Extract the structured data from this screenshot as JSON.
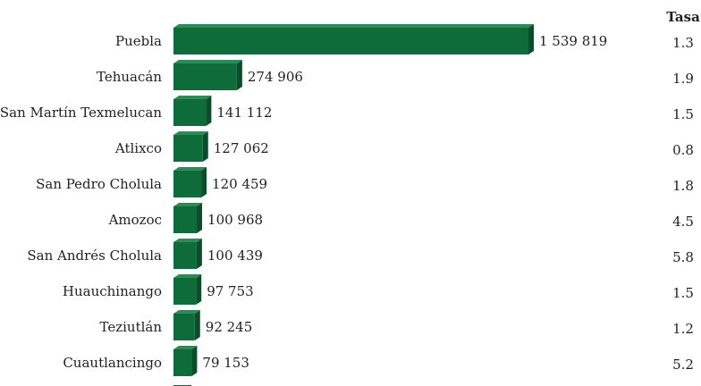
{
  "chart_data": {
    "type": "bar",
    "orientation": "horizontal",
    "rate_header": "Tasa",
    "categories": [
      "Puebla",
      "Tehuacán",
      "San Martín Texmelucan",
      "Atlixco",
      "San Pedro Cholula",
      "Amozoc",
      "San Andrés Cholula",
      "Huauchinango",
      "Teziutlán",
      "Cuautlancingo"
    ],
    "values": [
      1539819,
      274906,
      141112,
      127062,
      120459,
      100968,
      100439,
      97753,
      92245,
      79153
    ],
    "value_labels": [
      "1 539 819",
      "274 906",
      "141 112",
      "127 062",
      "120 459",
      "100 968",
      "100 439",
      "97 753",
      "92 245",
      "79 153"
    ],
    "rates": [
      "1.3",
      "1.9",
      "1.5",
      "0.8",
      "1.8",
      "4.5",
      "5.8",
      "1.5",
      "1.2",
      "5.2"
    ],
    "bar_color": "#0e6b3a",
    "bar_side_color": "#0a4d29",
    "bar_top_color": "#2f8a57",
    "truncated_bar_below": true
  }
}
